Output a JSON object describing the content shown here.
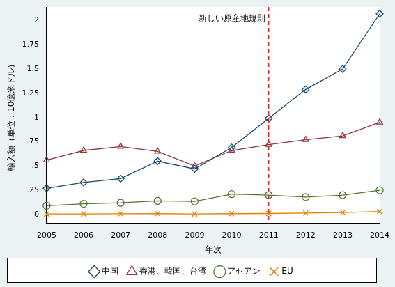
{
  "chart_data": {
    "type": "line",
    "x_label": "年次",
    "y_label": "輸入額（単位：10億米ドル）",
    "categories": [
      "2005",
      "2006",
      "2007",
      "2008",
      "2009",
      "2010",
      "2011",
      "2012",
      "2013",
      "2014"
    ],
    "series": [
      {
        "name": "中国",
        "color": "#1a476f",
        "marker": "diamond",
        "values": [
          0.27,
          0.33,
          0.37,
          0.55,
          0.47,
          0.69,
          0.99,
          1.29,
          1.5,
          2.07
        ]
      },
      {
        "name": "香港、韓国、台湾",
        "color": "#90353b",
        "marker": "triangle",
        "values": [
          0.56,
          0.66,
          0.7,
          0.65,
          0.5,
          0.66,
          0.72,
          0.77,
          0.81,
          0.95
        ]
      },
      {
        "name": "アセアン",
        "color": "#55752f",
        "marker": "circle",
        "values": [
          0.09,
          0.11,
          0.12,
          0.14,
          0.135,
          0.21,
          0.2,
          0.18,
          0.2,
          0.25
        ]
      },
      {
        "name": "EU",
        "color": "#e37e00",
        "marker": "x",
        "values": [
          0.005,
          0.005,
          0.007,
          0.008,
          0.005,
          0.008,
          0.01,
          0.015,
          0.02,
          0.03
        ]
      }
    ],
    "ylim": [
      -0.09,
      2.14
    ],
    "yticks": [
      0,
      {
        "value": 0.25,
        "label": ".25"
      },
      {
        "value": 0.5,
        "label": ".5"
      },
      {
        "value": 0.75,
        "label": ".75"
      },
      1,
      1.25,
      1.5,
      1.75,
      2
    ],
    "grid": false,
    "legend": "bottom",
    "annotations": [
      {
        "x": "2011",
        "label": "新しい原産地規則",
        "color": "#d62728",
        "line_style": "dashed"
      }
    ]
  }
}
